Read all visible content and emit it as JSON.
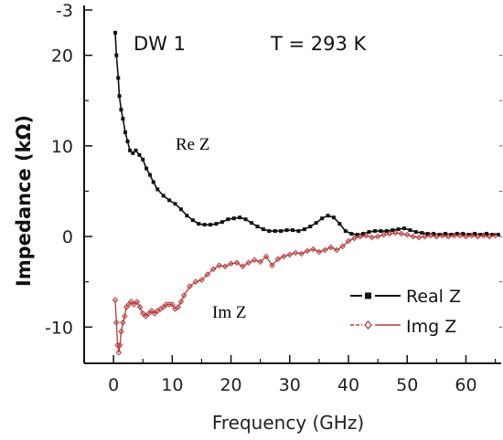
{
  "chart_data": {
    "type": "line",
    "title": "",
    "xlabel": "Frequency (GHz)",
    "ylabel": "Impedance (kΩ)",
    "xlim": [
      -5,
      66
    ],
    "ylim": [
      -14,
      25.5
    ],
    "x_ticks": [
      0,
      10,
      20,
      30,
      40,
      50,
      60
    ],
    "y_ticks": [
      -10,
      0,
      10,
      20
    ],
    "y_ticks_extra": [
      {
        "value": 25,
        "label": "-3"
      }
    ],
    "grid": false,
    "legend_position": "bottom-right",
    "annotations": {
      "sample": "DW 1",
      "temperature": "T = 293 K",
      "re_label": "Re Z",
      "im_label": "Im Z"
    },
    "series": [
      {
        "name": "Real Z",
        "color": "#111111",
        "marker": "square",
        "x": [
          0.3,
          0.5,
          0.8,
          1.0,
          1.3,
          1.6,
          2,
          2.4,
          2.8,
          3.3,
          3.8,
          4.4,
          5,
          5.6,
          6.2,
          6.8,
          7.5,
          8.5,
          9.5,
          10.5,
          11.5,
          12.5,
          13.5,
          14.5,
          15.5,
          16.5,
          17.5,
          18.5,
          19.5,
          20.5,
          21.5,
          22.5,
          23.5,
          24.5,
          25.5,
          26.5,
          27.5,
          28.5,
          29.5,
          30.5,
          31.5,
          32.5,
          33.5,
          34.5,
          35.5,
          36.5,
          37.5,
          38.5,
          39.5,
          40.5,
          41.5,
          42.5,
          43.5,
          44.5,
          45.5,
          46.5,
          47.5,
          48.5,
          49.5,
          50.5,
          51.5,
          52.5,
          53.5,
          54.5,
          55.5,
          56.5,
          57.5,
          58.5,
          59.5,
          60.5,
          61.5,
          62.5,
          63.5,
          64.5,
          65.5
        ],
        "values": [
          22.5,
          20,
          17.5,
          15.5,
          14,
          13,
          11.5,
          10.5,
          9.5,
          9.2,
          9.5,
          9,
          8.5,
          7.5,
          6.8,
          6,
          5.2,
          4.5,
          4,
          3.6,
          3,
          2.3,
          1.8,
          1.4,
          1.3,
          1.3,
          1.4,
          1.6,
          1.9,
          2,
          2.1,
          1.9,
          1.5,
          1.1,
          0.8,
          0.6,
          0.6,
          0.6,
          0.7,
          0.7,
          0.6,
          0.8,
          1.1,
          1.5,
          2,
          2.3,
          2.1,
          1.4,
          0.6,
          0.3,
          0.2,
          0.3,
          0.5,
          0.6,
          0.6,
          0.6,
          0.7,
          0.8,
          0.9,
          0.7,
          0.5,
          0.4,
          0.3,
          0.3,
          0.2,
          0.3,
          0.2,
          0.3,
          0.3,
          0.2,
          0.3,
          0.2,
          0.3,
          0.2,
          0.2
        ]
      },
      {
        "name": "Img Z",
        "color": "#b83a3a",
        "marker": "diamond",
        "x": [
          0.3,
          0.5,
          0.7,
          0.9,
          1.1,
          1.3,
          1.6,
          1.9,
          2.2,
          2.6,
          3,
          3.5,
          4,
          4.5,
          5,
          5.5,
          6,
          6.5,
          7,
          7.5,
          8,
          8.5,
          9,
          9.5,
          10,
          10.5,
          11,
          11.5,
          12,
          13,
          14,
          15,
          16,
          17,
          18,
          19,
          20,
          21,
          22,
          23,
          24,
          25,
          26,
          27,
          28,
          29,
          30,
          31,
          32,
          33,
          34,
          35,
          36,
          37,
          38,
          39,
          40,
          41,
          42,
          43,
          44,
          45,
          46,
          47,
          48,
          49,
          50,
          51,
          52,
          53,
          54,
          55,
          56,
          57,
          58,
          59,
          60,
          61,
          62,
          63,
          64,
          65
        ],
        "values": [
          -7,
          -9.5,
          -12,
          -12.8,
          -12,
          -10.5,
          -9.5,
          -8.8,
          -7.8,
          -7.5,
          -7.2,
          -7.5,
          -7.2,
          -7.8,
          -8.5,
          -8.8,
          -8.5,
          -8.2,
          -8.5,
          -8.2,
          -8,
          -7.8,
          -7.5,
          -7.5,
          -7.5,
          -8,
          -7.8,
          -7.2,
          -6.5,
          -5.5,
          -5,
          -4.8,
          -4.2,
          -3.6,
          -3.2,
          -3.3,
          -3,
          -2.9,
          -3.3,
          -2.9,
          -2.6,
          -2.8,
          -2.2,
          -3.2,
          -2.5,
          -2.2,
          -2,
          -1.8,
          -1.9,
          -1.6,
          -1.4,
          -1.7,
          -1.5,
          -1.2,
          -1.5,
          -1.1,
          -0.5,
          -0.2,
          0,
          0.1,
          -0.1,
          0,
          0.2,
          0.3,
          0.4,
          0.3,
          0.2,
          0,
          -0.1,
          0,
          0.1,
          0,
          0.1,
          0,
          0.1,
          0.1,
          0,
          0.1,
          0,
          0.1,
          0,
          0.1
        ]
      }
    ]
  }
}
